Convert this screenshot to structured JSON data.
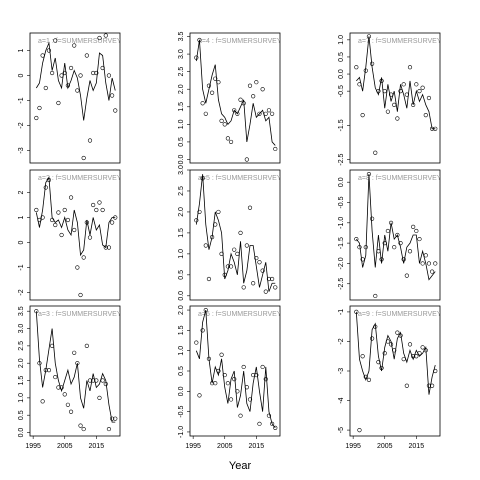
{
  "x_label": "Year",
  "chart_data": [
    {
      "type": "line",
      "title": "a=1 : f=SUMMERSURVEY",
      "x": [
        1996,
        1997,
        1998,
        1999,
        2000,
        2001,
        2002,
        2003,
        2004,
        2005,
        2006,
        2007,
        2008,
        2009,
        2010,
        2011,
        2012,
        2013,
        2014,
        2015,
        2016,
        2017,
        2018,
        2019,
        2020,
        2021
      ],
      "xlim": [
        1994,
        2022.5
      ],
      "observed": [
        -1.7,
        -1.3,
        0.8,
        -0.5,
        1.0,
        0.1,
        1.4,
        -1.1,
        0.0,
        0.1,
        -0.4,
        0.3,
        1.2,
        -0.6,
        0.0,
        -3.3,
        0.8,
        -2.6,
        0.1,
        0.1,
        1.5,
        0.3,
        1.6,
        0.0,
        -0.8,
        -1.4
      ],
      "fitted": [
        -0.5,
        -0.3,
        0.5,
        1.0,
        1.3,
        0.2,
        0.7,
        -0.2,
        -0.5,
        0.5,
        -0.5,
        -0.2,
        0.2,
        -0.1,
        -0.8,
        -1.8,
        -0.9,
        -0.2,
        -0.6,
        -0.3,
        0.9,
        0.8,
        -0.3,
        -1.0,
        -0.1,
        -0.6
      ],
      "ylim": [
        -3.5,
        1.7
      ],
      "yticks": [
        -3,
        -2,
        -1,
        0,
        1
      ]
    },
    {
      "type": "line",
      "title": "a=2 : f=SUMMERSURVEY",
      "x": [
        1996,
        1997,
        1998,
        1999,
        2000,
        2001,
        2002,
        2003,
        2004,
        2005,
        2006,
        2007,
        2008,
        2009,
        2010,
        2011,
        2012,
        2013,
        2014,
        2015,
        2016,
        2017,
        2018,
        2019,
        2020,
        2021
      ],
      "xlim": [
        1994,
        2022.5
      ],
      "observed": [
        1.3,
        0.9,
        1.0,
        2.2,
        2.5,
        0.9,
        0.7,
        1.2,
        0.3,
        1.3,
        0.9,
        1.8,
        0.5,
        -1.0,
        -2.1,
        -0.6,
        0.8,
        0.2,
        1.5,
        1.3,
        1.6,
        1.3,
        -0.2,
        -0.2,
        0.8,
        1.0
      ],
      "fitted": [
        1.2,
        0.6,
        1.3,
        2.4,
        2.6,
        1.0,
        0.8,
        0.9,
        0.6,
        1.0,
        0.5,
        0.3,
        1.3,
        0.8,
        -0.5,
        -0.3,
        0.9,
        0.3,
        1.0,
        0.5,
        0.7,
        -0.1,
        -0.2,
        0.8,
        1.0,
        1.0
      ],
      "ylim": [
        -2.3,
        2.9
      ],
      "yticks": [
        -2,
        -1,
        0,
        1,
        2
      ]
    },
    {
      "type": "line",
      "title": "a=3 : f=SUMMERSURVEY",
      "x": [
        1996,
        1997,
        1998,
        1999,
        2000,
        2001,
        2002,
        2003,
        2004,
        2005,
        2006,
        2007,
        2008,
        2009,
        2010,
        2011,
        2012,
        2013,
        2014,
        2015,
        2016,
        2017,
        2018,
        2019,
        2020,
        2021
      ],
      "xlim": [
        1994,
        2022.5
      ],
      "observed": [
        3.5,
        2.0,
        0.9,
        1.8,
        1.8,
        2.5,
        1.6,
        1.3,
        1.3,
        1.1,
        0.8,
        0.6,
        2.3,
        2.0,
        0.2,
        0.1,
        2.5,
        1.5,
        1.5,
        1.5,
        1.0,
        1.5,
        1.4,
        0.1,
        0.4,
        0.4
      ],
      "fitted": [
        3.5,
        2.1,
        1.3,
        1.8,
        2.4,
        3.0,
        2.0,
        1.5,
        1.2,
        1.5,
        1.8,
        1.4,
        1.6,
        2.0,
        1.0,
        0.7,
        1.5,
        1.2,
        1.7,
        1.3,
        1.4,
        1.7,
        1.5,
        0.8,
        0.3,
        0.3
      ],
      "ylim": [
        -0.1,
        3.65
      ],
      "yticks": [
        {
          "value": 0,
          "label": "0.0"
        },
        0.5,
        {
          "value": 1,
          "label": "1.0"
        },
        1.5,
        {
          "value": 2,
          "label": "2.0"
        },
        2.5,
        {
          "value": 3,
          "label": "3.0"
        },
        3.5
      ],
      "xticks": [
        1995,
        2005,
        2015
      ]
    },
    {
      "type": "line",
      "title": "a=4 : f=SUMMERSURVEY",
      "x": [
        1996,
        1997,
        1998,
        1999,
        2000,
        2001,
        2002,
        2003,
        2004,
        2005,
        2006,
        2007,
        2008,
        2009,
        2010,
        2011,
        2012,
        2013,
        2014,
        2015,
        2016,
        2017,
        2018,
        2019,
        2020,
        2021
      ],
      "xlim": [
        1994,
        2022.5
      ],
      "observed": [
        2.9,
        3.4,
        1.6,
        1.3,
        2.1,
        1.9,
        2.3,
        2.2,
        1.1,
        1.0,
        0.6,
        0.5,
        1.4,
        1.3,
        1.7,
        1.6,
        0.0,
        2.1,
        1.8,
        2.2,
        1.3,
        2.0,
        1.3,
        1.4,
        1.3,
        0.3
      ],
      "fitted": [
        2.8,
        3.4,
        2.0,
        1.6,
        2.0,
        2.4,
        2.7,
        1.7,
        1.3,
        1.2,
        1.0,
        1.1,
        1.4,
        1.3,
        1.5,
        1.7,
        0.5,
        1.0,
        1.6,
        1.2,
        1.3,
        1.4,
        1.1,
        1.2,
        0.5,
        0.4
      ],
      "ylim": [
        -0.1,
        3.6
      ],
      "yticks": [
        {
          "value": 0,
          "label": "0.0"
        },
        0.5,
        {
          "value": 1,
          "label": "1.0"
        },
        1.5,
        {
          "value": 2,
          "label": "2.0"
        },
        2.5,
        {
          "value": 3,
          "label": "3.0"
        },
        3.5
      ]
    },
    {
      "type": "line",
      "title": "a=5 : f=SUMMERSURVEY",
      "x": [
        1996,
        1997,
        1998,
        1999,
        2000,
        2001,
        2002,
        2003,
        2004,
        2005,
        2006,
        2007,
        2008,
        2009,
        2010,
        2011,
        2012,
        2013,
        2014,
        2015,
        2016,
        2017,
        2018,
        2019,
        2020,
        2021
      ],
      "xlim": [
        1994,
        2022.5
      ],
      "observed": [
        1.8,
        2.0,
        2.8,
        1.2,
        0.4,
        1.4,
        1.7,
        2.0,
        1.0,
        0.5,
        0.7,
        0.7,
        1.1,
        1.0,
        1.5,
        0.2,
        1.2,
        2.1,
        0.3,
        0.9,
        0.8,
        0.6,
        0.1,
        0.4,
        0.4,
        0.2
      ],
      "fitted": [
        1.7,
        2.2,
        2.9,
        1.7,
        1.1,
        1.4,
        2.0,
        1.8,
        1.5,
        0.4,
        0.6,
        1.0,
        0.8,
        0.5,
        1.3,
        0.3,
        0.6,
        1.2,
        1.2,
        0.7,
        0.2,
        0.5,
        0.8,
        0.1,
        0.3,
        0.3
      ],
      "ylim": [
        -0.1,
        3.0
      ],
      "yticks": [
        {
          "value": 0,
          "label": "0.0"
        },
        0.5,
        {
          "value": 1,
          "label": "1.0"
        },
        1.5,
        {
          "value": 2,
          "label": "2.0"
        },
        2.5,
        {
          "value": 3,
          "label": "3.0"
        }
      ]
    },
    {
      "type": "line",
      "title": "a=6 : f=SUMMERSURVEY",
      "x": [
        1996,
        1997,
        1998,
        1999,
        2000,
        2001,
        2002,
        2003,
        2004,
        2005,
        2006,
        2007,
        2008,
        2009,
        2010,
        2011,
        2012,
        2013,
        2014,
        2015,
        2016,
        2017,
        2018,
        2019,
        2020,
        2021
      ],
      "xlim": [
        1994,
        2022.5
      ],
      "observed": [
        1.2,
        -0.1,
        1.5,
        2.0,
        0.8,
        0.2,
        0.2,
        0.5,
        0.9,
        0.4,
        0.2,
        -0.2,
        0.3,
        0.0,
        -0.6,
        0.6,
        0.1,
        -0.2,
        0.4,
        0.4,
        -0.8,
        0.6,
        0.3,
        -0.6,
        -0.8,
        -0.9
      ],
      "fitted": [
        1.0,
        0.8,
        1.7,
        2.0,
        0.8,
        0.2,
        0.6,
        0.4,
        0.8,
        0.1,
        -0.3,
        0.3,
        0.5,
        -0.4,
        -0.1,
        0.5,
        -0.3,
        -0.5,
        0.2,
        0.6,
        0.0,
        -0.5,
        0.6,
        -0.5,
        -0.8,
        -0.9
      ],
      "ylim": [
        -1.1,
        2.1
      ],
      "yticks": [
        {
          "value": -1,
          "label": "-1.0"
        },
        -0.5,
        {
          "value": 0,
          "label": "0.0"
        },
        0.5,
        {
          "value": 1,
          "label": "1.0"
        },
        1.5,
        {
          "value": 2,
          "label": "2.0"
        }
      ],
      "xticks": [
        1995,
        2005,
        2015
      ]
    },
    {
      "type": "line",
      "title": "a=7 : f=SUMMERSURVEY",
      "x": [
        1996,
        1997,
        1998,
        1999,
        2000,
        2001,
        2002,
        2003,
        2004,
        2005,
        2006,
        2007,
        2008,
        2009,
        2010,
        2011,
        2012,
        2013,
        2014,
        2015,
        2016,
        2017,
        2018,
        2019,
        2020,
        2021
      ],
      "xlim": [
        1994,
        2022.5
      ],
      "observed": [
        0.2,
        -0.3,
        -1.2,
        0.1,
        1.1,
        0.3,
        -2.3,
        -0.5,
        -0.2,
        -0.5,
        -1.1,
        -0.6,
        -0.9,
        -1.3,
        -0.5,
        -0.3,
        -0.6,
        0.2,
        -0.9,
        -0.3,
        -0.5,
        -0.4,
        -1.2,
        -0.7,
        -1.6,
        -1.6
      ],
      "fitted": [
        -0.2,
        -0.1,
        -0.5,
        0.2,
        1.1,
        0.2,
        -0.4,
        -0.6,
        -0.1,
        -1.0,
        -0.3,
        -0.8,
        -0.5,
        -1.1,
        -0.3,
        -0.6,
        -1.0,
        -0.2,
        -0.9,
        -0.5,
        -0.8,
        -0.6,
        -0.9,
        -1.1,
        -1.6,
        -1.6
      ],
      "ylim": [
        -2.6,
        1.2
      ],
      "yticks": [
        -2.5,
        -1.5,
        -0.5,
        {
          "value": 0,
          "label": "0.0"
        },
        0.5,
        {
          "value": 1,
          "label": "1.0"
        }
      ]
    },
    {
      "type": "line",
      "title": "a=8 : f=SUMMERSURVEY",
      "x": [
        1996,
        1997,
        1998,
        1999,
        2000,
        2001,
        2002,
        2003,
        2004,
        2005,
        2006,
        2007,
        2008,
        2009,
        2010,
        2011,
        2012,
        2013,
        2014,
        2015,
        2016,
        2017,
        2018,
        2019,
        2020,
        2021
      ],
      "xlim": [
        1994,
        2022.5
      ],
      "observed": [
        -1.4,
        -1.6,
        -1.9,
        -1.6,
        0.2,
        -0.9,
        -2.8,
        -1.7,
        -1.9,
        -1.5,
        -1.2,
        -1.0,
        -1.6,
        -1.3,
        -1.5,
        -1.9,
        -2.3,
        -1.7,
        -1.1,
        -1.2,
        -1.4,
        -2.0,
        -1.8,
        -2.0,
        -2.2,
        -2.0
      ],
      "fitted": [
        -1.4,
        -1.5,
        -2.1,
        -1.8,
        0.2,
        -1.2,
        -2.1,
        -1.3,
        -2.0,
        -1.3,
        -1.7,
        -1.0,
        -1.4,
        -1.3,
        -1.6,
        -2.0,
        -1.6,
        -1.5,
        -1.3,
        -1.3,
        -2.0,
        -1.7,
        -2.0,
        -2.4,
        -2.3,
        -2.2
      ],
      "ylim": [
        -2.9,
        0.3
      ],
      "yticks": [
        -2.5,
        {
          "value": -2,
          "label": "-2.0"
        },
        -1.5,
        {
          "value": -1,
          "label": "-1.0"
        },
        -0.5,
        {
          "value": 0,
          "label": "0.0"
        }
      ]
    },
    {
      "type": "line",
      "title": "a=9 : f=SUMMERSURVEY",
      "x": [
        1996,
        1997,
        1998,
        1999,
        2000,
        2001,
        2002,
        2003,
        2004,
        2005,
        2006,
        2007,
        2008,
        2009,
        2010,
        2011,
        2012,
        2013,
        2014,
        2015,
        2016,
        2017,
        2018,
        2019,
        2020,
        2021
      ],
      "xlim": [
        1994,
        2022.5
      ],
      "observed": [
        -1.0,
        -5.0,
        -2.5,
        -3.2,
        -3.3,
        -1.9,
        -1.5,
        -2.7,
        -2.9,
        -2.4,
        -2.0,
        -2.1,
        -2.3,
        -1.7,
        -1.8,
        -2.6,
        -3.5,
        -2.1,
        -2.5,
        -2.5,
        -2.4,
        -2.2,
        -2.3,
        -3.5,
        -3.5,
        -3.0
      ],
      "fitted": [
        -1.0,
        -2.6,
        -3.0,
        -3.3,
        -3.0,
        -1.6,
        -1.4,
        -2.5,
        -3.0,
        -2.2,
        -1.8,
        -2.0,
        -2.6,
        -1.9,
        -1.7,
        -2.4,
        -2.7,
        -2.3,
        -2.6,
        -2.3,
        -2.5,
        -2.4,
        -2.2,
        -3.8,
        -3.2,
        -2.8
      ],
      "ylim": [
        -5.2,
        -0.8
      ],
      "yticks": [
        -5,
        -4,
        -3,
        -2,
        -1
      ],
      "xticks": [
        1995,
        2005,
        2015
      ]
    }
  ]
}
